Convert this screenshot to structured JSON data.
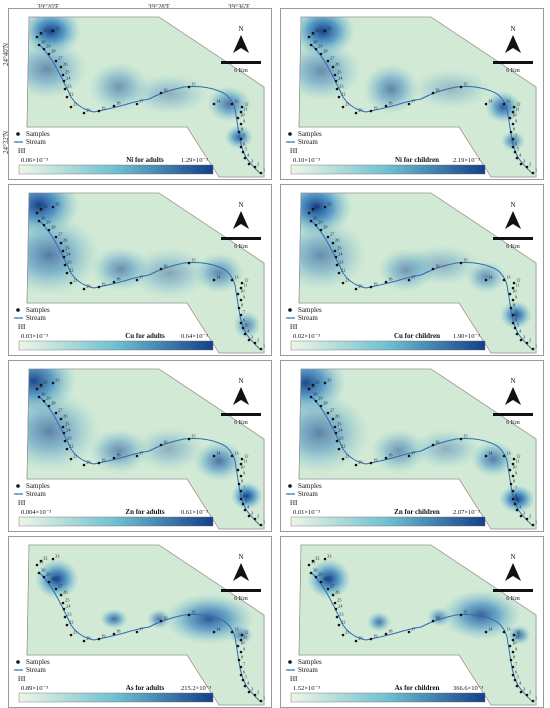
{
  "axes": {
    "longitudes": [
      "39°20'E",
      "39°28'E",
      "39°36'E"
    ],
    "latitudes": [
      "24°40'N",
      "24°32'N"
    ]
  },
  "legend": {
    "samples": "Samples",
    "stream": "Stream",
    "hi": "HI"
  },
  "north": "N",
  "scalebar": "6 Km",
  "sample_ids": [
    "1",
    "2",
    "3",
    "4",
    "5",
    "6",
    "7",
    "8",
    "9",
    "10",
    "11",
    "12",
    "13",
    "14",
    "15",
    "16",
    "17",
    "18",
    "19",
    "20",
    "21",
    "22",
    "23",
    "24",
    "25",
    "26",
    "27",
    "28",
    "29",
    "30",
    "31",
    "32",
    "33"
  ],
  "panels": [
    {
      "title": "Ni for adults",
      "min": "0.06×10⁻³",
      "max": "1.29×10⁻³"
    },
    {
      "title": "Ni for children",
      "min": "0.10×10⁻³",
      "max": "2.19×10⁻³"
    },
    {
      "title": "Cu for adults",
      "min": "0.03×10⁻³",
      "max": "0.64×10⁻³"
    },
    {
      "title": "Cu for children",
      "min": "0.02×10⁻³",
      "max": "1.90×10⁻³"
    },
    {
      "title": "Zn for adults",
      "min": "0.004×10⁻³",
      "max": "0.61×10⁻³"
    },
    {
      "title": "Zn for children",
      "min": "0.01×10⁻³",
      "max": "2.07×10⁻³"
    },
    {
      "title": "As for adults",
      "min": "0.89×10⁻³",
      "max": "215.2×10⁻³"
    },
    {
      "title": "As for children",
      "min": "1.52×10⁻³",
      "max": "366.6×10⁻³"
    }
  ],
  "colors": {
    "low": "#eef6e4",
    "mid": "#6fc0d0",
    "high": "#153f88",
    "stream": "#2d6db3"
  }
}
